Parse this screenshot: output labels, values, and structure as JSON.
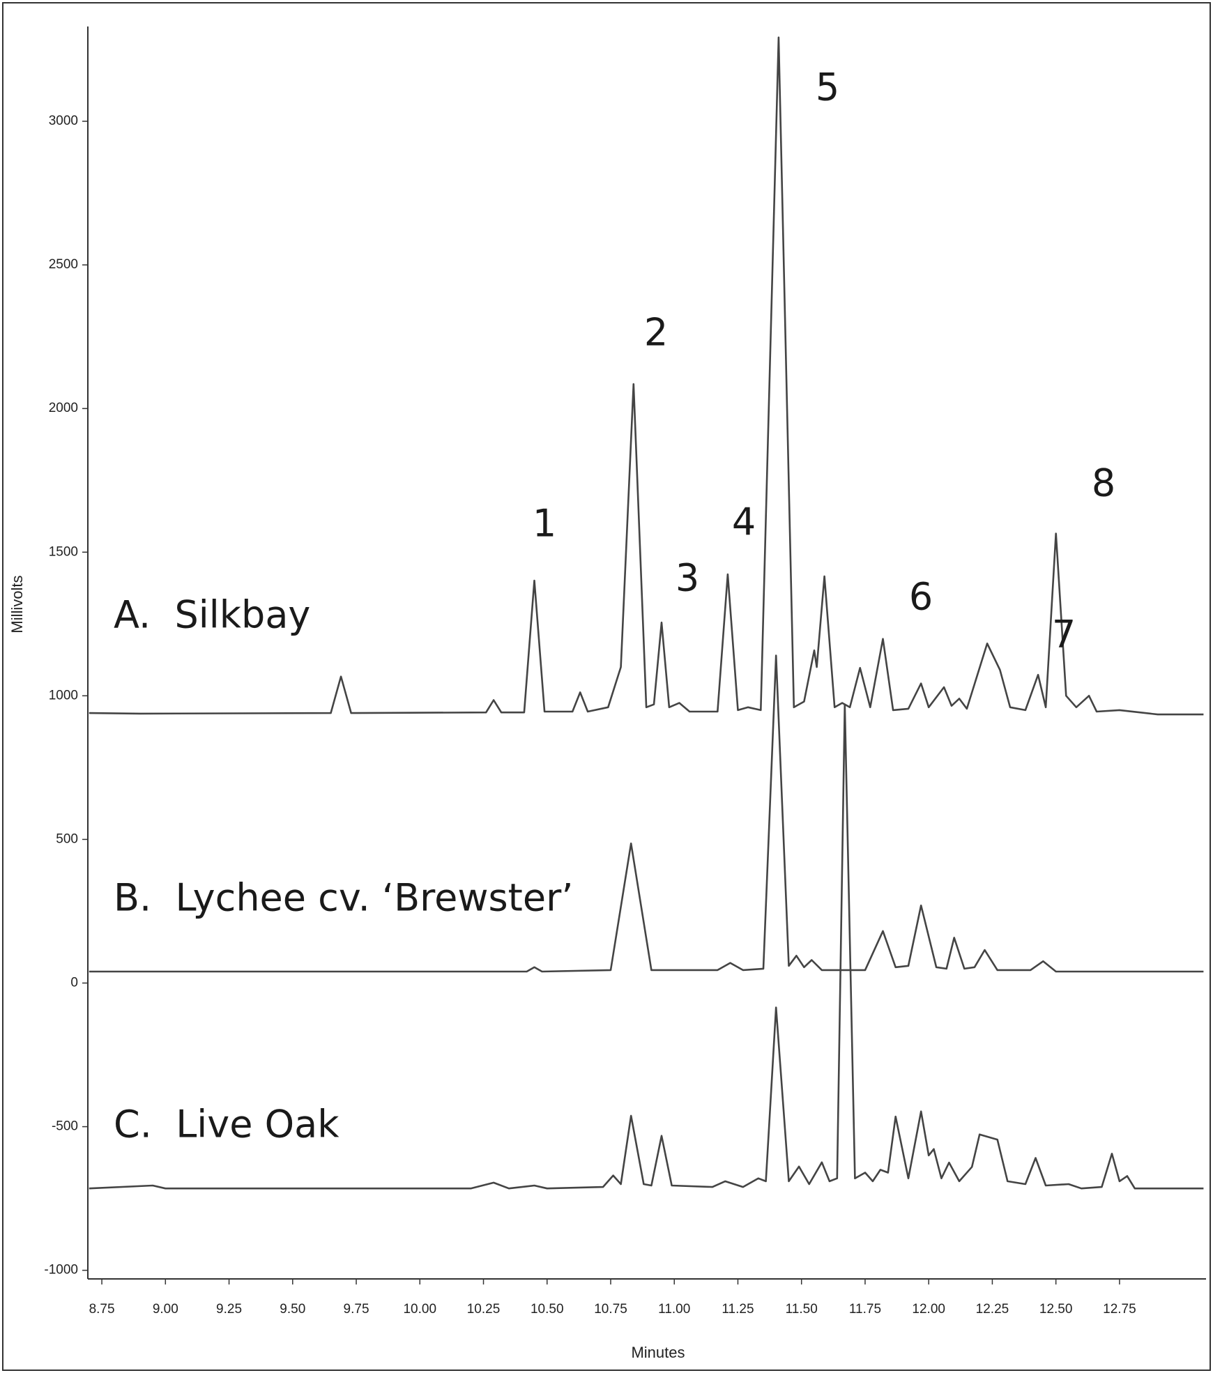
{
  "chart_data": {
    "type": "line",
    "x_label": "Minutes",
    "y_label": "Millivolts",
    "xlim": [
      8.695,
      13.09
    ],
    "ylim": [
      -1030,
      3330
    ],
    "xticks": [
      8.75,
      {
        "value": 9,
        "label": "9.00"
      },
      9.25,
      {
        "value": 9.5,
        "label": "9.50"
      },
      9.75,
      {
        "value": 10,
        "label": "10.00"
      },
      10.25,
      {
        "value": 10.5,
        "label": "10.50"
      },
      10.75,
      {
        "value": 11,
        "label": "11.00"
      },
      11.25,
      {
        "value": 11.5,
        "label": "11.50"
      },
      11.75,
      {
        "value": 12,
        "label": "12.00"
      },
      12.25,
      {
        "value": 12.5,
        "label": "12.50"
      },
      12.75
    ],
    "yticks": [
      -1000,
      -500,
      0,
      500,
      1000,
      1500,
      2000,
      2500,
      3000
    ],
    "peak_labels": [
      "1",
      "2",
      "3",
      "4",
      "5",
      "6",
      "7",
      "8"
    ],
    "series": [
      {
        "name": "A.  Silkbay",
        "color": "#444444",
        "x": [
          8.7,
          8.9,
          9.65,
          9.69,
          9.73,
          10.26,
          10.29,
          10.32,
          10.41,
          10.45,
          10.49,
          10.6,
          10.63,
          10.66,
          10.74,
          10.79,
          10.84,
          10.89,
          10.92,
          10.95,
          10.98,
          11.02,
          11.06,
          11.17,
          11.21,
          11.25,
          11.29,
          11.34,
          11.41,
          11.47,
          11.51,
          11.55,
          11.56,
          11.59,
          11.63,
          11.66,
          11.69,
          11.73,
          11.77,
          11.82,
          11.86,
          11.92,
          11.97,
          12.0,
          12.06,
          12.09,
          12.12,
          12.15,
          12.23,
          12.28,
          12.32,
          12.38,
          12.43,
          12.46,
          12.5,
          12.54,
          12.58,
          12.63,
          12.66,
          12.75,
          12.9,
          13.08
        ],
        "values": [
          940,
          938,
          940,
          1067,
          940,
          942,
          985,
          942,
          942,
          1401,
          945,
          945,
          1012,
          945,
          960,
          1100,
          2085,
          960,
          970,
          1255,
          960,
          975,
          945,
          945,
          1423,
          950,
          960,
          950,
          3292,
          960,
          980,
          1158,
          1100,
          1416,
          960,
          975,
          960,
          1097,
          960,
          1198,
          950,
          955,
          1043,
          960,
          1030,
          965,
          990,
          955,
          1182,
          1090,
          960,
          950,
          1073,
          960,
          1565,
          1000,
          960,
          1000,
          945,
          950,
          935,
          935
        ]
      },
      {
        "name": "B.  Lychee cv. ‘Brewster’",
        "color": "#444444",
        "x": [
          8.7,
          9.5,
          10.42,
          10.45,
          10.48,
          10.75,
          10.83,
          10.91,
          11.17,
          11.22,
          11.27,
          11.35,
          11.4,
          11.45,
          11.48,
          11.51,
          11.54,
          11.58,
          11.75,
          11.82,
          11.87,
          11.92,
          11.97,
          12.03,
          12.07,
          12.1,
          12.14,
          12.18,
          12.22,
          12.27,
          12.4,
          12.45,
          12.5,
          13.08
        ],
        "values": [
          40,
          40,
          40,
          55,
          40,
          45,
          486,
          45,
          45,
          70,
          45,
          50,
          1140,
          60,
          95,
          55,
          80,
          45,
          45,
          181,
          55,
          60,
          270,
          55,
          50,
          158,
          50,
          55,
          115,
          45,
          45,
          76,
          40,
          40
        ]
      },
      {
        "name": "C.  Live Oak",
        "color": "#444444",
        "x": [
          8.7,
          8.95,
          9.0,
          10.2,
          10.29,
          10.35,
          10.45,
          10.5,
          10.72,
          10.76,
          10.79,
          10.83,
          10.88,
          10.91,
          10.95,
          10.99,
          11.15,
          11.2,
          11.27,
          11.33,
          11.36,
          11.4,
          11.45,
          11.49,
          11.53,
          11.58,
          11.61,
          11.64,
          11.67,
          11.71,
          11.75,
          11.78,
          11.81,
          11.84,
          11.87,
          11.92,
          11.97,
          12.0,
          12.02,
          12.05,
          12.08,
          12.12,
          12.17,
          12.2,
          12.27,
          12.31,
          12.38,
          12.42,
          12.46,
          12.55,
          12.6,
          12.68,
          12.72,
          12.75,
          12.78,
          12.81,
          13.08
        ],
        "values": [
          -715,
          -705,
          -715,
          -715,
          -695,
          -715,
          -705,
          -715,
          -710,
          -670,
          -700,
          -462,
          -700,
          -705,
          -532,
          -705,
          -710,
          -690,
          -710,
          -680,
          -690,
          -85,
          -690,
          -639,
          -700,
          -624,
          -690,
          -680,
          970,
          -680,
          -660,
          -690,
          -650,
          -660,
          -465,
          -680,
          -447,
          -600,
          -578,
          -680,
          -625,
          -690,
          -640,
          -527,
          -545,
          -690,
          -700,
          -609,
          -705,
          -700,
          -715,
          -710,
          -594,
          -690,
          -672,
          -715,
          -715
        ]
      }
    ]
  }
}
